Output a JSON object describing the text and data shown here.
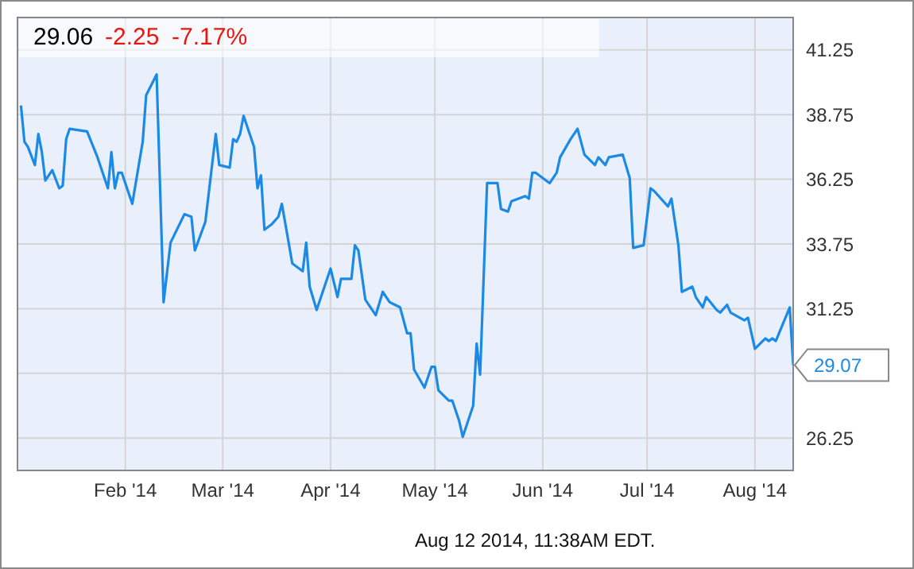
{
  "chart_data": {
    "type": "line",
    "x": [
      "2014-01-02",
      "2014-01-03",
      "2014-01-04",
      "2014-01-06",
      "2014-01-07",
      "2014-01-08",
      "2014-01-09",
      "2014-01-11",
      "2014-01-13",
      "2014-01-14",
      "2014-01-15",
      "2014-01-16",
      "2014-01-21",
      "2014-01-24",
      "2014-01-27",
      "2014-01-28",
      "2014-01-29",
      "2014-01-30",
      "2014-01-31",
      "2014-02-03",
      "2014-02-06",
      "2014-02-07",
      "2014-02-10",
      "2014-02-12",
      "2014-02-14",
      "2014-02-18",
      "2014-02-20",
      "2014-02-21",
      "2014-02-24",
      "2014-02-27",
      "2014-02-28",
      "2014-03-03",
      "2014-03-04",
      "2014-03-05",
      "2014-03-06",
      "2014-03-07",
      "2014-03-10",
      "2014-03-11",
      "2014-03-12",
      "2014-03-13",
      "2014-03-15",
      "2014-03-17",
      "2014-03-18",
      "2014-03-21",
      "2014-03-24",
      "2014-03-25",
      "2014-03-26",
      "2014-03-28",
      "2014-04-01",
      "2014-04-03",
      "2014-04-04",
      "2014-04-07",
      "2014-04-08",
      "2014-04-09",
      "2014-04-11",
      "2014-04-14",
      "2014-04-16",
      "2014-04-18",
      "2014-04-21",
      "2014-04-23",
      "2014-04-24",
      "2014-04-25",
      "2014-04-28",
      "2014-04-30",
      "2014-05-01",
      "2014-05-02",
      "2014-05-05",
      "2014-05-06",
      "2014-05-08",
      "2014-05-09",
      "2014-05-12",
      "2014-05-13",
      "2014-05-14",
      "2014-05-16",
      "2014-05-19",
      "2014-05-20",
      "2014-05-22",
      "2014-05-23",
      "2014-05-27",
      "2014-05-28",
      "2014-05-29",
      "2014-05-30",
      "2014-06-03",
      "2014-06-05",
      "2014-06-06",
      "2014-06-09",
      "2014-06-10",
      "2014-06-11",
      "2014-06-13",
      "2014-06-16",
      "2014-06-17",
      "2014-06-19",
      "2014-06-20",
      "2014-06-24",
      "2014-06-26",
      "2014-06-27",
      "2014-06-30",
      "2014-07-02",
      "2014-07-03",
      "2014-07-07",
      "2014-07-08",
      "2014-07-10",
      "2014-07-11",
      "2014-07-14",
      "2014-07-15",
      "2014-07-17",
      "2014-07-18",
      "2014-07-21",
      "2014-07-22",
      "2014-07-24",
      "2014-07-25",
      "2014-07-29",
      "2014-07-30",
      "2014-08-01",
      "2014-08-04",
      "2014-08-05",
      "2014-08-06",
      "2014-08-07",
      "2014-08-11",
      "2014-08-12"
    ],
    "series": [
      {
        "color": "#1a8ae6",
        "values": [
          39.1,
          37.7,
          37.5,
          36.8,
          38.0,
          37.3,
          36.2,
          36.6,
          35.9,
          36.0,
          37.8,
          38.2,
          38.1,
          37.1,
          35.9,
          37.3,
          35.9,
          36.5,
          36.5,
          35.3,
          37.7,
          39.5,
          40.3,
          31.5,
          33.8,
          34.9,
          34.8,
          33.5,
          34.6,
          38.0,
          36.8,
          36.7,
          37.8,
          37.7,
          38.0,
          38.7,
          37.5,
          35.9,
          36.4,
          34.3,
          34.5,
          34.8,
          35.3,
          33.0,
          32.7,
          33.8,
          32.1,
          31.2,
          32.8,
          31.7,
          32.4,
          32.4,
          33.7,
          33.5,
          31.6,
          31.0,
          31.9,
          31.5,
          31.3,
          30.3,
          30.3,
          28.9,
          28.2,
          29.0,
          29.0,
          28.1,
          27.7,
          27.7,
          26.9,
          26.3,
          27.5,
          29.9,
          28.7,
          36.1,
          36.1,
          35.1,
          35.0,
          35.4,
          35.6,
          35.5,
          36.5,
          36.5,
          36.1,
          36.5,
          37.1,
          37.8,
          38.0,
          38.2,
          37.2,
          36.8,
          37.1,
          36.8,
          37.1,
          37.2,
          36.3,
          33.6,
          33.7,
          35.9,
          35.8,
          35.2,
          35.5,
          33.7,
          31.9,
          32.1,
          31.7,
          31.3,
          31.7,
          31.2,
          31.1,
          31.4,
          31.1,
          30.8,
          30.9,
          29.7,
          30.1,
          30.0,
          30.1,
          30.0,
          31.3,
          29.07
        ]
      }
    ],
    "xlim": [
      "2014-01-01",
      "2014-08-12"
    ],
    "xticks": [
      {
        "value": "2014-02-01",
        "label": "Feb '14"
      },
      {
        "value": "2014-03-01",
        "label": "Mar '14"
      },
      {
        "value": "2014-04-01",
        "label": "Apr '14"
      },
      {
        "value": "2014-05-01",
        "label": "May '14"
      },
      {
        "value": "2014-06-01",
        "label": "Jun '14"
      },
      {
        "value": "2014-07-01",
        "label": "Jul '14"
      },
      {
        "value": "2014-08-01",
        "label": "Aug '14"
      }
    ],
    "ylim": [
      25,
      42.5
    ],
    "yticks": [
      26.25,
      {
        "value": 28.75,
        "label": null
      },
      31.25,
      33.75,
      36.25,
      38.75,
      41.25
    ],
    "grid": true,
    "annotations": [
      "29.06",
      "-2.25",
      "-7.17%",
      "Aug 12 2014, 11:38AM EDT.",
      {
        "text": "29.07",
        "x": "2014-08-12",
        "y": 29.07
      }
    ]
  }
}
